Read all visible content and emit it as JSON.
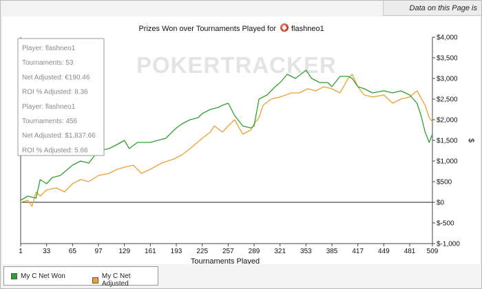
{
  "status": {
    "filter_notice": "Data on this Page is Filtered"
  },
  "chart_data": {
    "type": "line",
    "title": "Prizes Won over Tournaments Played for",
    "player_name": "flashneo1",
    "title_icon": "pokerstars-logo-icon",
    "watermark": "POKERTRACKER",
    "xlabel": "Tournaments Played",
    "ylabel": "$",
    "xlim": [
      1,
      509
    ],
    "ylim": [
      -1000,
      4000
    ],
    "x_ticks": [
      1,
      33,
      65,
      97,
      129,
      161,
      193,
      225,
      257,
      289,
      321,
      353,
      385,
      417,
      449,
      481,
      509
    ],
    "y_ticks": [
      -1000,
      -500,
      0,
      500,
      1000,
      1500,
      2000,
      2500,
      3000,
      3500,
      4000
    ],
    "y_tick_labels": [
      "$-1,000",
      "$-500",
      "$0",
      "$500",
      "$1,000",
      "$1,500",
      "$2,000",
      "$2,500",
      "$3,000",
      "$3,500",
      "$4,000"
    ],
    "grid": false,
    "zero_line": true,
    "info_box": [
      "Player: flashneo1",
      "Tournaments: 53",
      "Net Adjusted: €190.46",
      "ROI % Adjusted: 8.36",
      "Player: flashneo1",
      "Tournaments: 456",
      "Net Adjusted: $1,837.66",
      "ROI % Adjusted: 5.66"
    ],
    "legend_position": "bottom-left",
    "series": [
      {
        "name": "My C Net Won",
        "color": "#2ea02e",
        "x": [
          1,
          10,
          20,
          25,
          33,
          40,
          50,
          65,
          75,
          85,
          97,
          110,
          120,
          129,
          135,
          145,
          161,
          170,
          180,
          193,
          200,
          210,
          220,
          225,
          235,
          245,
          250,
          257,
          265,
          275,
          285,
          289,
          295,
          305,
          315,
          321,
          330,
          340,
          353,
          360,
          370,
          380,
          385,
          395,
          405,
          410,
          417,
          425,
          435,
          449,
          460,
          470,
          481,
          490,
          495,
          500,
          505,
          509
        ],
        "y": [
          50,
          150,
          100,
          550,
          450,
          600,
          650,
          900,
          1000,
          950,
          1250,
          1300,
          1400,
          1500,
          1300,
          1450,
          1450,
          1500,
          1550,
          1800,
          1900,
          2000,
          2050,
          2150,
          2250,
          2300,
          2350,
          2400,
          2100,
          1850,
          1800,
          1850,
          2500,
          2600,
          2800,
          2900,
          3100,
          3000,
          3200,
          3000,
          2900,
          2900,
          2800,
          3050,
          3050,
          3000,
          2800,
          2750,
          2650,
          2700,
          2650,
          2700,
          2600,
          2400,
          2100,
          1700,
          1450,
          1650
        ]
      },
      {
        "name": "My C Net Adjusted",
        "color": "#f0a030",
        "x": [
          1,
          10,
          15,
          20,
          25,
          33,
          45,
          55,
          65,
          75,
          85,
          97,
          110,
          120,
          129,
          140,
          150,
          161,
          175,
          190,
          200,
          210,
          225,
          235,
          240,
          250,
          257,
          265,
          275,
          285,
          289,
          295,
          300,
          310,
          321,
          335,
          345,
          355,
          365,
          375,
          385,
          395,
          405,
          410,
          417,
          425,
          435,
          449,
          460,
          470,
          481,
          490,
          500,
          505,
          509
        ],
        "y": [
          0,
          50,
          -100,
          250,
          150,
          300,
          350,
          250,
          450,
          550,
          500,
          650,
          700,
          800,
          850,
          900,
          700,
          800,
          950,
          1050,
          1150,
          1300,
          1550,
          1700,
          1850,
          1700,
          1850,
          2000,
          1650,
          1750,
          1900,
          2050,
          2350,
          2500,
          2550,
          2650,
          2650,
          2750,
          2700,
          2800,
          2750,
          2650,
          3000,
          3100,
          2800,
          2600,
          2550,
          2600,
          2400,
          2500,
          2550,
          2700,
          2350,
          2050,
          1950
        ]
      }
    ]
  }
}
